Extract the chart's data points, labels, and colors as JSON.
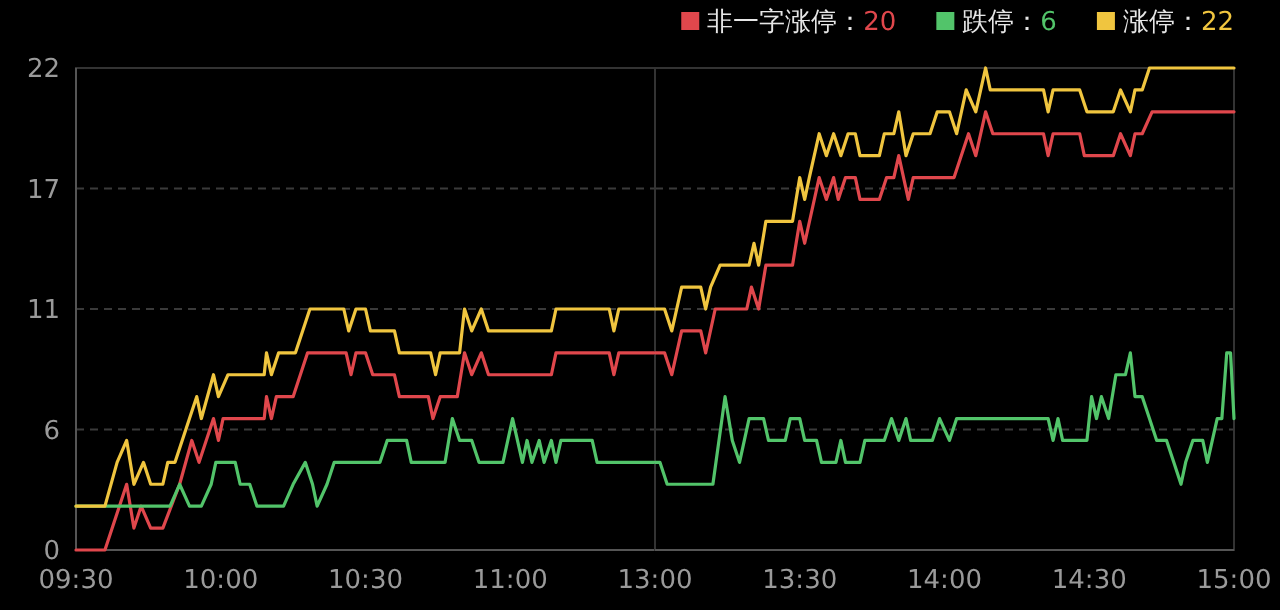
{
  "chart_data": [
    {
      "type": "line",
      "grid": "y",
      "marker": "none",
      "line_style": "solid",
      "xlim": [
        9.5,
        11.5
      ],
      "xticks": [
        {
          "value": 9.5,
          "label": "09:30"
        },
        {
          "value": 10,
          "label": "10:00"
        },
        {
          "value": 10.5,
          "label": "10:30"
        },
        {
          "value": 11,
          "label": "11:00"
        }
      ],
      "ylim": [
        0,
        22
      ],
      "yticks": [
        0,
        {
          "value": 5.5,
          "label": "6"
        },
        11,
        {
          "value": 16.5,
          "label": "17"
        },
        22
      ],
      "series": [
        {
          "color": "#e0474c",
          "x": [
            9.5,
            9.6,
            9.675,
            9.7,
            9.725,
            9.758,
            9.8,
            9.858,
            9.9,
            9.925,
            9.975,
            9.992,
            10.008,
            10.15,
            10.158,
            10.175,
            10.192,
            10.25,
            10.3,
            10.433,
            10.45,
            10.467,
            10.5,
            10.525,
            10.6,
            10.617,
            10.717,
            10.733,
            10.758,
            10.817,
            10.842,
            10.867,
            10.9,
            10.925,
            11.142,
            11.158,
            11.342,
            11.358,
            11.375,
            11.5
          ],
          "values": [
            0,
            0,
            3,
            1,
            2,
            1,
            1,
            3,
            5,
            4,
            6,
            5,
            6,
            6,
            7,
            6,
            7,
            7,
            9,
            9,
            8,
            9,
            9,
            8,
            8,
            7,
            7,
            6,
            7,
            7,
            9,
            8,
            9,
            8,
            8,
            9,
            9,
            8,
            9,
            9
          ]
        },
        {
          "color": "#52c46a",
          "x": [
            9.5,
            9.825,
            9.858,
            9.892,
            9.933,
            9.967,
            9.983,
            10.05,
            10.067,
            10.1,
            10.125,
            10.217,
            10.25,
            10.292,
            10.317,
            10.333,
            10.367,
            10.392,
            10.55,
            10.575,
            10.642,
            10.658,
            10.775,
            10.8,
            10.825,
            10.867,
            10.892,
            10.975,
            11.008,
            11.042,
            11.058,
            11.075,
            11.1,
            11.117,
            11.142,
            11.158,
            11.175,
            11.283,
            11.3,
            11.5
          ],
          "values": [
            2,
            2,
            3,
            2,
            2,
            3,
            4,
            4,
            3,
            3,
            2,
            2,
            3,
            4,
            3,
            2,
            3,
            4,
            4,
            5,
            5,
            4,
            4,
            6,
            5,
            5,
            4,
            4,
            6,
            4,
            5,
            4,
            5,
            4,
            5,
            4,
            5,
            5,
            4,
            4
          ]
        },
        {
          "color": "#f0c53f",
          "x": [
            9.5,
            9.6,
            9.642,
            9.675,
            9.7,
            9.733,
            9.758,
            9.8,
            9.817,
            9.842,
            9.892,
            9.917,
            9.933,
            9.975,
            9.992,
            10.025,
            10.15,
            10.158,
            10.175,
            10.2,
            10.258,
            10.308,
            10.425,
            10.442,
            10.467,
            10.5,
            10.517,
            10.6,
            10.617,
            10.725,
            10.742,
            10.758,
            10.825,
            10.842,
            10.867,
            10.9,
            10.925,
            11.142,
            11.158,
            11.342,
            11.358,
            11.375,
            11.5
          ],
          "values": [
            2,
            2,
            4,
            5,
            3,
            4,
            3,
            3,
            4,
            4,
            6,
            7,
            6,
            8,
            7,
            8,
            8,
            9,
            8,
            9,
            9,
            11,
            11,
            10,
            11,
            11,
            10,
            10,
            9,
            9,
            8,
            9,
            9,
            11,
            10,
            11,
            10,
            10,
            11,
            11,
            10,
            11,
            11
          ]
        }
      ]
    },
    {
      "type": "line",
      "grid": "y",
      "marker": "none",
      "line_style": "solid",
      "legend": "top right",
      "tick_labels": "x",
      "xlim": [
        13,
        15
      ],
      "xticks": [
        {
          "value": 13,
          "label": "13:00"
        },
        {
          "value": 13.5,
          "label": "13:30"
        },
        {
          "value": 14,
          "label": "14:00"
        },
        {
          "value": 14.5,
          "label": "14:30"
        },
        {
          "value": 15,
          "label": "15:00"
        }
      ],
      "ylim": [
        0,
        22
      ],
      "yticks": [
        {
          "value": 0,
          "label": null
        },
        {
          "value": 5.5,
          "label": null
        },
        {
          "value": 11,
          "label": null
        },
        {
          "value": 16.5,
          "label": null
        },
        {
          "value": 22,
          "label": null
        }
      ],
      "series": [
        {
          "name": "非一字涨停：20",
          "color": "#e0474c",
          "x": [
            13,
            13.033,
            13.058,
            13.092,
            13.158,
            13.175,
            13.208,
            13.317,
            13.333,
            13.358,
            13.383,
            13.475,
            13.5,
            13.517,
            13.567,
            13.592,
            13.617,
            13.633,
            13.658,
            13.692,
            13.708,
            13.775,
            13.8,
            13.825,
            13.842,
            13.875,
            13.892,
            14.033,
            14.083,
            14.108,
            14.142,
            14.167,
            14.342,
            14.358,
            14.375,
            14.467,
            14.483,
            14.583,
            14.608,
            14.642,
            14.658,
            14.683,
            14.717,
            15
          ],
          "values": [
            9,
            9,
            8,
            10,
            10,
            9,
            11,
            11,
            12,
            11,
            13,
            13,
            15,
            14,
            17,
            16,
            17,
            16,
            17,
            17,
            16,
            16,
            17,
            17,
            18,
            16,
            17,
            17,
            19,
            18,
            20,
            19,
            19,
            18,
            19,
            19,
            18,
            18,
            19,
            18,
            19,
            19,
            20,
            20
          ]
        },
        {
          "name": "跌停：6",
          "color": "#52c46a",
          "x": [
            13,
            13.017,
            13.042,
            13.2,
            13.242,
            13.267,
            13.292,
            13.325,
            13.375,
            13.392,
            13.45,
            13.467,
            13.5,
            13.517,
            13.558,
            13.575,
            13.625,
            13.642,
            13.658,
            13.708,
            13.725,
            13.792,
            13.817,
            13.842,
            13.867,
            13.883,
            13.958,
            13.983,
            14.017,
            14.042,
            14.358,
            14.375,
            14.392,
            14.408,
            14.492,
            14.508,
            14.525,
            14.542,
            14.567,
            14.592,
            14.625,
            14.642,
            14.658,
            14.683,
            14.708,
            14.733,
            14.767,
            14.792,
            14.817,
            14.833,
            14.858,
            14.892,
            14.908,
            14.942,
            14.958,
            14.975,
            14.988,
            15
          ],
          "values": [
            4,
            4,
            3,
            3,
            7,
            5,
            4,
            6,
            6,
            5,
            5,
            6,
            6,
            5,
            5,
            4,
            4,
            5,
            4,
            4,
            5,
            5,
            6,
            5,
            6,
            5,
            5,
            6,
            5,
            6,
            6,
            5,
            6,
            5,
            5,
            7,
            6,
            7,
            6,
            8,
            8,
            9,
            7,
            7,
            6,
            5,
            5,
            4,
            3,
            4,
            5,
            5,
            4,
            6,
            6,
            9,
            9,
            6
          ]
        },
        {
          "name": "涨停：22",
          "color": "#f0c53f",
          "x": [
            13,
            13.033,
            13.058,
            13.092,
            13.158,
            13.175,
            13.192,
            13.225,
            13.325,
            13.342,
            13.358,
            13.383,
            13.475,
            13.5,
            13.517,
            13.533,
            13.567,
            13.592,
            13.617,
            13.642,
            13.667,
            13.692,
            13.708,
            13.775,
            13.792,
            13.825,
            13.842,
            13.867,
            13.892,
            13.95,
            13.975,
            14.017,
            14.042,
            14.075,
            14.108,
            14.142,
            14.158,
            14.342,
            14.358,
            14.375,
            14.467,
            14.492,
            14.583,
            14.608,
            14.642,
            14.658,
            14.683,
            14.708,
            15
          ],
          "values": [
            11,
            11,
            10,
            12,
            12,
            11,
            12,
            13,
            13,
            14,
            13,
            15,
            15,
            17,
            16,
            17,
            19,
            18,
            19,
            18,
            19,
            19,
            18,
            18,
            19,
            19,
            20,
            18,
            19,
            19,
            20,
            20,
            19,
            21,
            20,
            22,
            21,
            21,
            20,
            21,
            21,
            20,
            20,
            21,
            20,
            21,
            21,
            22,
            22
          ]
        }
      ]
    }
  ]
}
